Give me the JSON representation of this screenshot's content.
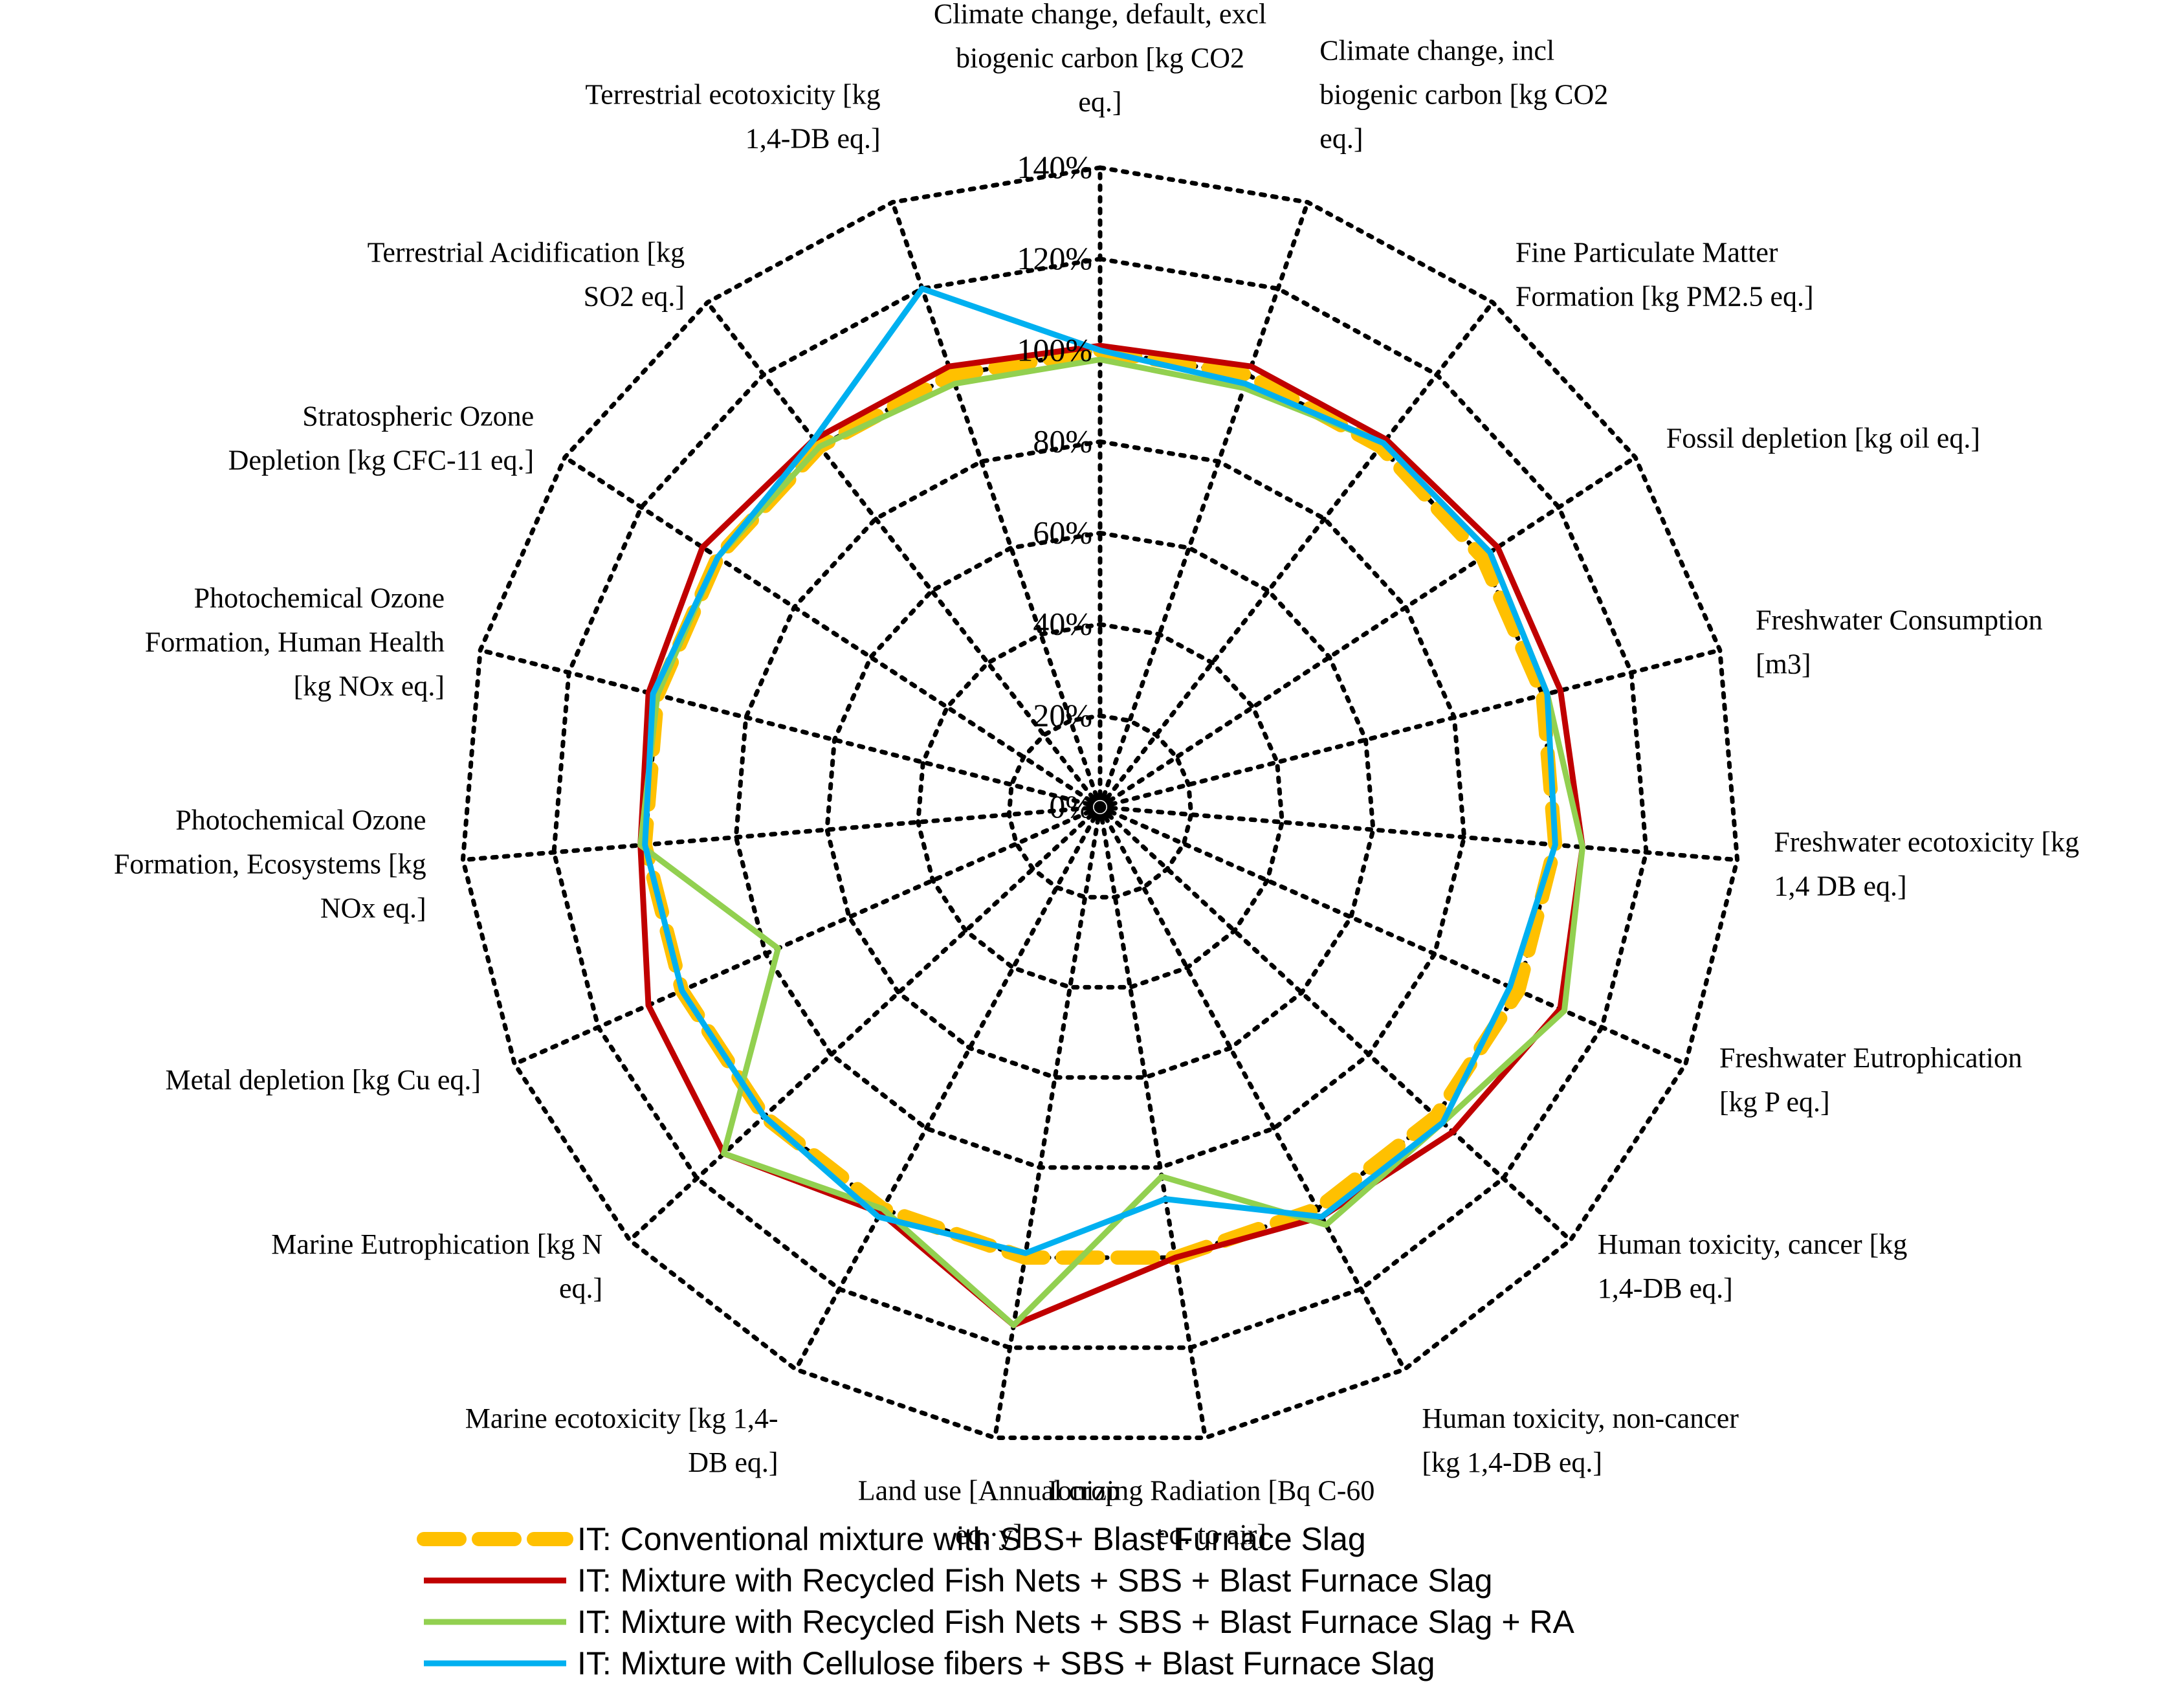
{
  "chart_data": {
    "type": "radar",
    "categories": [
      [
        "Climate change, default, excl",
        "biogenic carbon [kg CO2",
        "eq.]"
      ],
      [
        "Climate change, incl",
        "biogenic carbon [kg CO2",
        "eq.]"
      ],
      [
        "Fine Particulate Matter",
        "Formation [kg PM2.5 eq.]"
      ],
      [
        "Fossil depletion [kg oil eq.]"
      ],
      [
        "Freshwater Consumption",
        "[m3]"
      ],
      [
        "Freshwater ecotoxicity [kg",
        "1,4 DB eq.]"
      ],
      [
        "Freshwater Eutrophication",
        "[kg P eq.]"
      ],
      [
        "Human toxicity, cancer [kg",
        "1,4-DB eq.]"
      ],
      [
        "Human toxicity, non-cancer",
        "[kg 1,4-DB eq.]"
      ],
      [
        "Ionizing Radiation [Bq C-60",
        "eq. to air]"
      ],
      [
        "Land use [Annual crop",
        "eq.·y]"
      ],
      [
        "Marine ecotoxicity [kg 1,4-",
        "DB eq.]"
      ],
      [
        "Marine Eutrophication [kg N",
        "eq.]"
      ],
      [
        "Metal depletion [kg Cu eq.]"
      ],
      [
        "Photochemical Ozone",
        "Formation, Ecosystems [kg",
        "NOx eq.]"
      ],
      [
        "Photochemical Ozone",
        "Formation, Human Health",
        "[kg NOx eq.]"
      ],
      [
        "Stratospheric Ozone",
        "Depletion [kg CFC-11 eq.]"
      ],
      [
        "Terrestrial Acidification [kg",
        "SO2 eq.]"
      ],
      [
        "Terrestrial ecotoxicity [kg",
        "1,4-DB eq.]"
      ]
    ],
    "ticks": [
      "0%",
      "20%",
      "40%",
      "60%",
      "80%",
      "100%",
      "120%",
      "140%"
    ],
    "rlim": [
      0,
      140
    ],
    "grid": true,
    "legend_position": "bottom",
    "series": [
      {
        "name": "IT: Conventional mixture with SBS+ Blast Furnace Slag",
        "color": "#FFC000",
        "style": "dashed",
        "values": [
          100,
          100,
          100,
          100,
          100,
          100,
          100,
          100,
          100,
          100,
          100,
          100,
          100,
          100,
          100,
          100,
          100,
          100,
          100
        ]
      },
      {
        "name": "IT: Mixture with Recycled Fish Nets + SBS + Blast Furnace Slag",
        "color": "#C00000",
        "style": "solid",
        "values": [
          101,
          102,
          102,
          104,
          104,
          106,
          110,
          105,
          102,
          100,
          115,
          101,
          112,
          108,
          101,
          102,
          104,
          102,
          102
        ]
      },
      {
        "name": "IT: Mixture with Recycled Fish Nets + SBS + Blast Furnace Slag + RA",
        "color": "#92D050",
        "style": "solid",
        "values": [
          98,
          97,
          101,
          102,
          101,
          106,
          111,
          102,
          104,
          82,
          115,
          100,
          112,
          77,
          101,
          100,
          100,
          100,
          98
        ]
      },
      {
        "name": "IT: Mixture with Cellulose fibers + SBS + Blast Furnace Slag",
        "color": "#00B0F0",
        "style": "solid",
        "values": [
          100,
          98,
          101,
          102,
          101,
          100,
          98,
          102,
          102,
          87,
          99,
          102,
          100,
          100,
          100,
          101,
          100,
          102,
          120
        ]
      }
    ]
  }
}
